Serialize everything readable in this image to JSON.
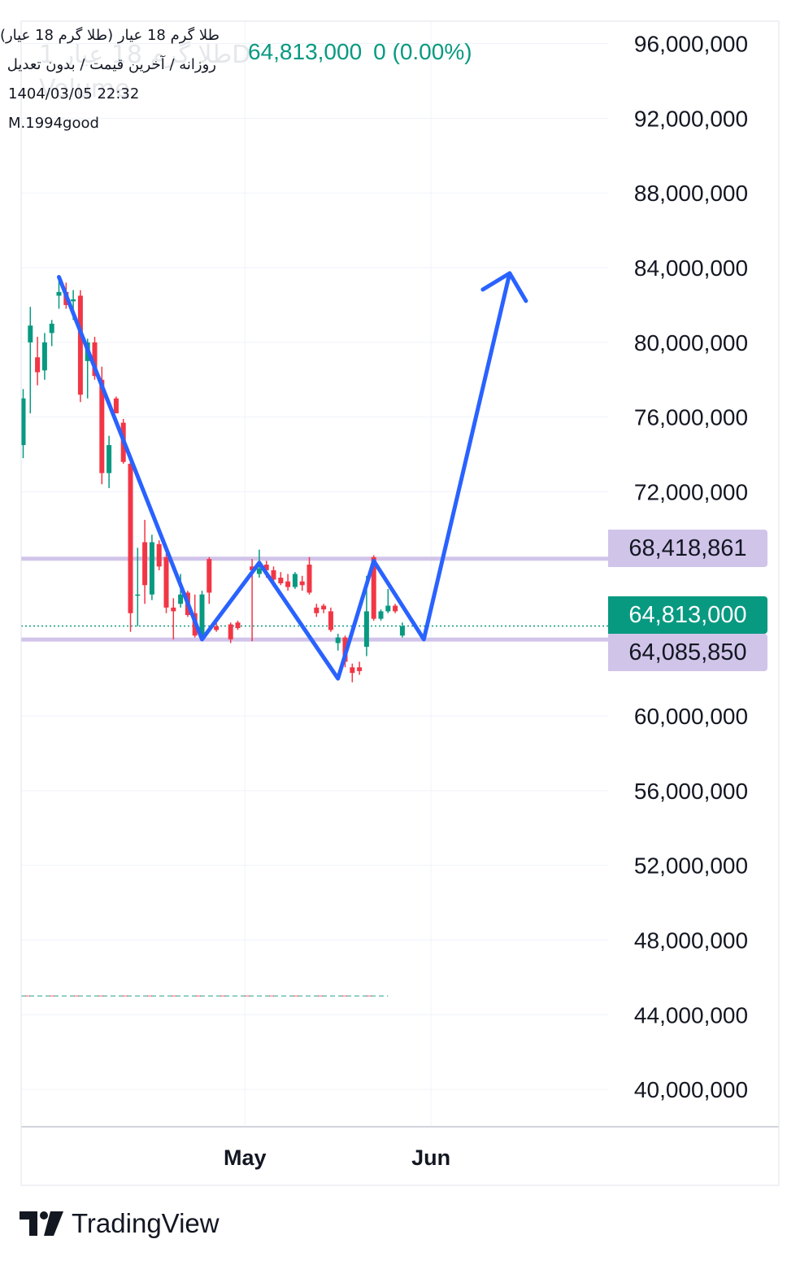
{
  "legend": {
    "symbol_name": "طلا گرم 18 عیار (طلا گرم 18 عیار)",
    "settings": "روزانه / آخرین قیمت / بدون تعدیل",
    "timestamp": "1404/03/05 22:32",
    "author": "M.1994good",
    "last_price": "64,813,000",
    "change": "0 (0.00%)",
    "ghost_title": "طلا گرم 18 عیار 1D",
    "ghost_volume": "Volume"
  },
  "brand": {
    "name": "TradingView",
    "icon": "tradingview-logo-icon"
  },
  "colors": {
    "up": "#089981",
    "down": "#f23645",
    "drawing": "#2962ff",
    "level": "#d1c4e9",
    "tag_text": "#131722",
    "last_price_bg": "#089981"
  },
  "chart_data": {
    "type": "candlestick",
    "interval": "1D",
    "ylim": [
      38000000,
      97200000
    ],
    "y_ticks": [
      96000000,
      92000000,
      88000000,
      84000000,
      80000000,
      76000000,
      72000000,
      60000000,
      56000000,
      52000000,
      48000000,
      44000000,
      40000000
    ],
    "y_tick_labels": [
      "96,000,000",
      "92,000,000",
      "88,000,000",
      "84,000,000",
      "80,000,000",
      "76,000,000",
      "72,000,000",
      "60,000,000",
      "56,000,000",
      "52,000,000",
      "48,000,000",
      "44,000,000",
      "40,000,000"
    ],
    "x_ticks": [
      {
        "day": 31,
        "label": "May"
      },
      {
        "day": 57,
        "label": "Jun"
      }
    ],
    "candles": [
      {
        "day": 0,
        "o": 74500000,
        "h": 77500000,
        "l": 73800000,
        "c": 77000000
      },
      {
        "day": 1,
        "o": 80000000,
        "h": 81900000,
        "l": 76200000,
        "c": 80900000
      },
      {
        "day": 2,
        "o": 79200000,
        "h": 80300000,
        "l": 77700000,
        "c": 78400000
      },
      {
        "day": 3,
        "o": 78500000,
        "h": 80500000,
        "l": 78000000,
        "c": 80000000
      },
      {
        "day": 4,
        "o": 80500000,
        "h": 81200000,
        "l": 79800000,
        "c": 81000000
      },
      {
        "day": 5,
        "o": 82500000,
        "h": 83400000,
        "l": 81800000,
        "c": 82700000
      },
      {
        "day": 6,
        "o": 82700000,
        "h": 83200000,
        "l": 81800000,
        "c": 82000000
      },
      {
        "day": 7,
        "o": 82200000,
        "h": 82800000,
        "l": 81200000,
        "c": 82300000
      },
      {
        "day": 8,
        "o": 82500000,
        "h": 82800000,
        "l": 76800000,
        "c": 77200000
      },
      {
        "day": 9,
        "o": 79000000,
        "h": 80200000,
        "l": 77000000,
        "c": 80000000
      },
      {
        "day": 10,
        "o": 80000000,
        "h": 80300000,
        "l": 78000000,
        "c": 78200000
      },
      {
        "day": 11,
        "o": 78000000,
        "h": 78700000,
        "l": 72400000,
        "c": 73000000
      },
      {
        "day": 12,
        "o": 73000000,
        "h": 75000000,
        "l": 72200000,
        "c": 74500000
      },
      {
        "day": 13,
        "o": 77000000,
        "h": 77100000,
        "l": 76200000,
        "c": 76200000
      },
      {
        "day": 14,
        "o": 75700000,
        "h": 75900000,
        "l": 73500000,
        "c": 73600000
      },
      {
        "day": 15,
        "o": 73500000,
        "h": 73800000,
        "l": 64500000,
        "c": 65500000
      },
      {
        "day": 16,
        "o": 66500000,
        "h": 69000000,
        "l": 64800000,
        "c": 66500000
      },
      {
        "day": 17,
        "o": 69300000,
        "h": 70500000,
        "l": 66000000,
        "c": 67000000
      },
      {
        "day": 18,
        "o": 66500000,
        "h": 69700000,
        "l": 66200000,
        "c": 69300000
      },
      {
        "day": 19,
        "o": 69200000,
        "h": 69400000,
        "l": 67800000,
        "c": 68000000
      },
      {
        "day": 20,
        "o": 68500000,
        "h": 68700000,
        "l": 65500000,
        "c": 65800000
      },
      {
        "day": 21,
        "o": 65800000,
        "h": 66300000,
        "l": 64100000,
        "c": 65600000
      },
      {
        "day": 22,
        "o": 66000000,
        "h": 67600000,
        "l": 65800000,
        "c": 66500000
      },
      {
        "day": 23,
        "o": 66600000,
        "h": 66700000,
        "l": 65300000,
        "c": 65400000
      },
      {
        "day": 24,
        "o": 65500000,
        "h": 66500000,
        "l": 64200000,
        "c": 64300000
      },
      {
        "day": 25,
        "o": 64300000,
        "h": 66700000,
        "l": 64000000,
        "c": 66500000
      },
      {
        "day": 26,
        "o": 68400000,
        "h": 68500000,
        "l": 66000000,
        "c": 66600000
      },
      {
        "day": 27,
        "o": 64800000,
        "h": 65000000,
        "l": 64500000,
        "c": 64600000
      },
      {
        "day": 29,
        "o": 64900000,
        "h": 65000000,
        "l": 63900000,
        "c": 64100000
      },
      {
        "day": 30,
        "o": 65000000,
        "h": 65100000,
        "l": 64600000,
        "c": 64700000
      },
      {
        "day": 32,
        "o": 68000000,
        "h": 68400000,
        "l": 64000000,
        "c": 67800000
      },
      {
        "day": 33,
        "o": 67600000,
        "h": 68900000,
        "l": 67400000,
        "c": 67900000
      },
      {
        "day": 34,
        "o": 68100000,
        "h": 68300000,
        "l": 67400000,
        "c": 67800000
      },
      {
        "day": 35,
        "o": 67800000,
        "h": 68000000,
        "l": 66900000,
        "c": 67300000
      },
      {
        "day": 36,
        "o": 67400000,
        "h": 67700000,
        "l": 67000000,
        "c": 67100000
      },
      {
        "day": 37,
        "o": 67200000,
        "h": 67600000,
        "l": 66700000,
        "c": 66900000
      },
      {
        "day": 38,
        "o": 66900000,
        "h": 67700000,
        "l": 66800000,
        "c": 67600000
      },
      {
        "day": 39,
        "o": 67200000,
        "h": 67500000,
        "l": 66700000,
        "c": 67000000
      },
      {
        "day": 40,
        "o": 68100000,
        "h": 68500000,
        "l": 66500000,
        "c": 66600000
      },
      {
        "day": 41,
        "o": 65800000,
        "h": 66000000,
        "l": 65300000,
        "c": 65500000
      },
      {
        "day": 42,
        "o": 65900000,
        "h": 66000000,
        "l": 65500000,
        "c": 65700000
      },
      {
        "day": 43,
        "o": 65600000,
        "h": 65800000,
        "l": 64500000,
        "c": 64600000
      },
      {
        "day": 44,
        "o": 63900000,
        "h": 64400000,
        "l": 63500000,
        "c": 64200000
      },
      {
        "day": 45,
        "o": 64200000,
        "h": 64300000,
        "l": 62600000,
        "c": 62900000
      },
      {
        "day": 46,
        "o": 62600000,
        "h": 62800000,
        "l": 61800000,
        "c": 62300000
      },
      {
        "day": 47,
        "o": 62600000,
        "h": 62900000,
        "l": 62200000,
        "c": 62400000
      },
      {
        "day": 48,
        "o": 63700000,
        "h": 67500000,
        "l": 63200000,
        "c": 65600000
      },
      {
        "day": 49,
        "o": 68500000,
        "h": 68600000,
        "l": 65100000,
        "c": 65200000
      },
      {
        "day": 50,
        "o": 65200000,
        "h": 65700000,
        "l": 65100000,
        "c": 65600000
      },
      {
        "day": 51,
        "o": 65600000,
        "h": 66800000,
        "l": 65500000,
        "c": 65900000
      },
      {
        "day": 52,
        "o": 65900000,
        "h": 66000000,
        "l": 65500000,
        "c": 65600000
      },
      {
        "day": 53,
        "o": 64300000,
        "h": 65000000,
        "l": 64200000,
        "c": 64800000
      }
    ],
    "levels": [
      {
        "value": 68418861,
        "label": "68,418,861"
      },
      {
        "value": 64085850,
        "label": "64,085,850"
      }
    ],
    "last_price": {
      "value": 64813000,
      "label": "64,813,000"
    },
    "dashed_line": {
      "value": 45000000,
      "day_end": 51
    },
    "pattern_path": [
      {
        "day": 5,
        "v": 83500000
      },
      {
        "day": 25,
        "v": 64100000
      },
      {
        "day": 33,
        "v": 68200000
      },
      {
        "day": 44,
        "v": 62000000
      },
      {
        "day": 49,
        "v": 68300000
      },
      {
        "day": 56,
        "v": 64100000
      },
      {
        "day": 68,
        "v": 83700000
      }
    ]
  }
}
